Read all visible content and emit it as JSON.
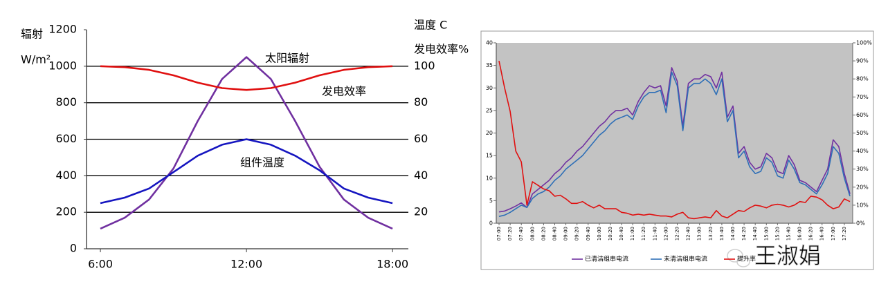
{
  "chart_data": [
    {
      "type": "line",
      "ylabel": [
        "辐射",
        "W/m²"
      ],
      "y2label": [
        "温度 C",
        "发电效率%"
      ],
      "x": [
        6,
        7,
        8,
        9,
        10,
        11,
        12,
        13,
        14,
        15,
        16,
        17,
        18
      ],
      "xlim": [
        5.43,
        18.65
      ],
      "xticks": [
        {
          "value": 6,
          "label": "6:00"
        },
        {
          "value": 12,
          "label": "12:00"
        },
        {
          "value": 18,
          "label": "18:00"
        }
      ],
      "ylim": [
        0,
        1200
      ],
      "yticks": [
        0,
        200,
        400,
        600,
        800,
        1000,
        1200
      ],
      "y2lim": [
        0,
        120
      ],
      "y2ticks": [
        20,
        40,
        60,
        80,
        100
      ],
      "grid": true,
      "series": [
        {
          "name": "太阳辐射",
          "color": "#7030a0",
          "values": [
            110,
            170,
            270,
            440,
            700,
            930,
            1050,
            930,
            700,
            450,
            270,
            170,
            110
          ]
        },
        {
          "name": "发电效率",
          "color": "#e01010",
          "axis": "y2",
          "values": [
            100,
            99.5,
            98,
            95,
            91,
            88,
            87,
            88,
            91,
            95,
            98,
            99.5,
            100
          ]
        },
        {
          "name": "组件温度",
          "color": "#1515c0",
          "axis": "y2",
          "values": [
            25,
            28,
            33,
            42,
            51,
            57,
            60,
            57,
            51,
            43,
            33,
            28,
            25
          ]
        }
      ]
    },
    {
      "type": "line",
      "categories": [
        "07:00",
        null,
        "07:20",
        null,
        "07:40",
        null,
        "08:00",
        null,
        "08:20",
        null,
        "08:40",
        null,
        "09:00",
        null,
        "09:20",
        null,
        "09:40",
        null,
        "10:00",
        null,
        "10:20",
        null,
        "10:40",
        null,
        "11:00",
        null,
        "11:20",
        null,
        "11:40",
        null,
        "12:00",
        null,
        "12:20",
        null,
        "12:40",
        null,
        "13:00",
        null,
        "13:20",
        null,
        "13:40",
        null,
        "14:00",
        null,
        "14:20",
        null,
        "14:40",
        null,
        "15:00",
        null,
        "15:20",
        null,
        "15:40",
        null,
        "16:00",
        null,
        "16:20",
        null,
        "16:40",
        null,
        "17:00",
        null,
        "17:20",
        null
      ],
      "ylim": [
        0,
        40
      ],
      "yticks": [
        0,
        5,
        10,
        15,
        20,
        25,
        30,
        35,
        40
      ],
      "y2lim": [
        0,
        100
      ],
      "y2ticks": [
        {
          "value": 0,
          "label": "0%"
        },
        {
          "value": 10,
          "label": "10%"
        },
        {
          "value": 20,
          "label": "20%"
        },
        {
          "value": 30,
          "label": "30%"
        },
        {
          "value": 40,
          "label": "40%"
        },
        {
          "value": 50,
          "label": "50%"
        },
        {
          "value": 60,
          "label": "60%"
        },
        {
          "value": 70,
          "label": "70%"
        },
        {
          "value": 80,
          "label": "80%"
        },
        {
          "value": 90,
          "label": "90%"
        },
        {
          "value": 100,
          "label": "100%"
        }
      ],
      "legend": "bottom",
      "background": "#c3c3c3",
      "watermark": "王淑娟",
      "series": [
        {
          "name": "已清洁组串电流",
          "color": "#7030a0",
          "values": [
            2.5,
            2.7,
            3.2,
            3.8,
            4.5,
            3.5,
            6.5,
            7.5,
            8.5,
            9.5,
            11,
            12,
            13.5,
            14.5,
            16,
            17,
            18.5,
            20,
            21.5,
            22.5,
            24,
            25,
            25,
            25.5,
            24,
            27,
            29,
            30.5,
            30,
            30.5,
            26,
            34.5,
            31.5,
            21.5,
            31,
            32,
            32,
            33,
            32.5,
            30,
            33.5,
            23.5,
            26,
            15.5,
            17,
            13.5,
            12,
            12.5,
            15.5,
            14.5,
            11.5,
            11,
            15,
            13,
            9.5,
            9,
            8,
            7,
            9.5,
            12,
            18.5,
            17,
            11,
            6.5
          ]
        },
        {
          "name": "未清洁组串电流",
          "color": "#2e6fb7",
          "values": [
            1.5,
            1.8,
            2.4,
            3.2,
            4,
            3.5,
            5.5,
            6.5,
            7,
            8,
            9.5,
            10.5,
            12,
            13,
            14,
            15,
            16.5,
            18,
            19.5,
            20.5,
            22,
            23,
            23.5,
            24,
            23,
            26,
            28,
            29,
            29,
            29.5,
            24.5,
            33.5,
            30.5,
            20.5,
            30,
            31,
            31,
            32,
            31,
            28.5,
            32,
            22.5,
            25,
            14.5,
            16,
            12.5,
            11,
            11.5,
            14.5,
            13.5,
            10.5,
            10,
            14,
            12,
            9,
            8.5,
            7.5,
            6.5,
            8.5,
            11,
            17,
            15.5,
            10,
            6
          ]
        },
        {
          "name": "提升率",
          "color": "#e01010",
          "axis": "y2",
          "values": [
            90,
            75,
            62,
            40,
            34,
            10,
            23,
            21,
            19,
            18,
            15,
            15.5,
            13.5,
            11,
            11,
            12,
            10,
            8.5,
            10,
            8,
            8,
            8,
            6,
            5.5,
            4.5,
            5,
            4.5,
            5,
            4.5,
            4,
            4,
            3.5,
            5,
            6,
            3,
            2.5,
            3,
            3.5,
            3,
            7,
            4,
            3,
            5,
            7,
            6.5,
            8.5,
            10,
            9.5,
            8.5,
            10,
            10.5,
            10,
            9,
            10,
            12,
            11.5,
            15,
            14.5,
            13,
            10,
            8,
            9,
            13.5,
            12
          ]
        }
      ]
    }
  ]
}
